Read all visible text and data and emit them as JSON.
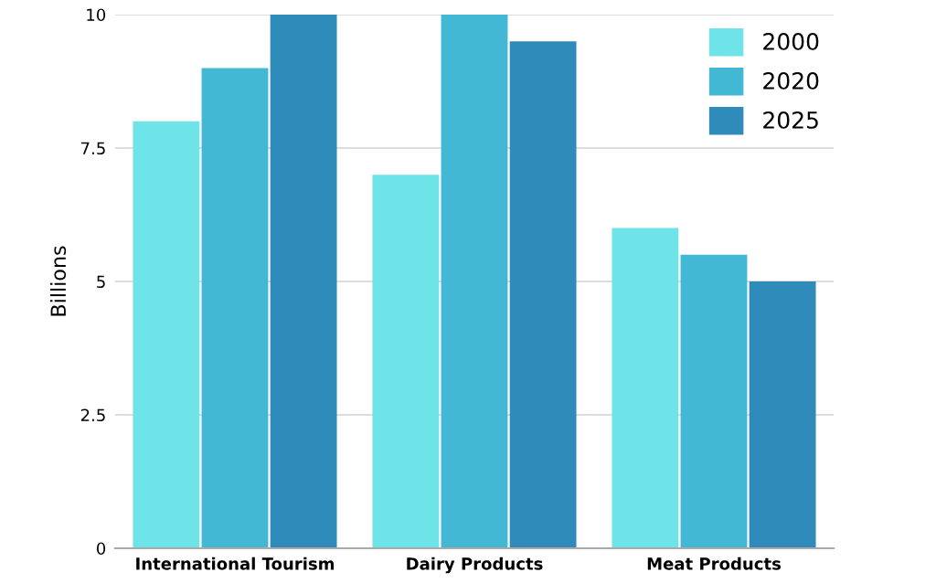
{
  "chart_data": {
    "type": "bar",
    "ylabel": "Billions",
    "categories": [
      "International Tourism",
      "Dairy Products",
      "Meat Products"
    ],
    "series": [
      {
        "name": "2000",
        "color": "#6ee4e8",
        "values": [
          8,
          7,
          6
        ]
      },
      {
        "name": "2020",
        "color": "#42b8d5",
        "values": [
          9,
          10,
          5.5
        ]
      },
      {
        "name": "2025",
        "color": "#2e8bba",
        "values": [
          10,
          9.5,
          5
        ]
      }
    ],
    "ylim": [
      0,
      10
    ],
    "yticks": [
      0,
      2.5,
      5,
      7.5,
      10
    ],
    "grid": "y",
    "legend": "top right"
  }
}
